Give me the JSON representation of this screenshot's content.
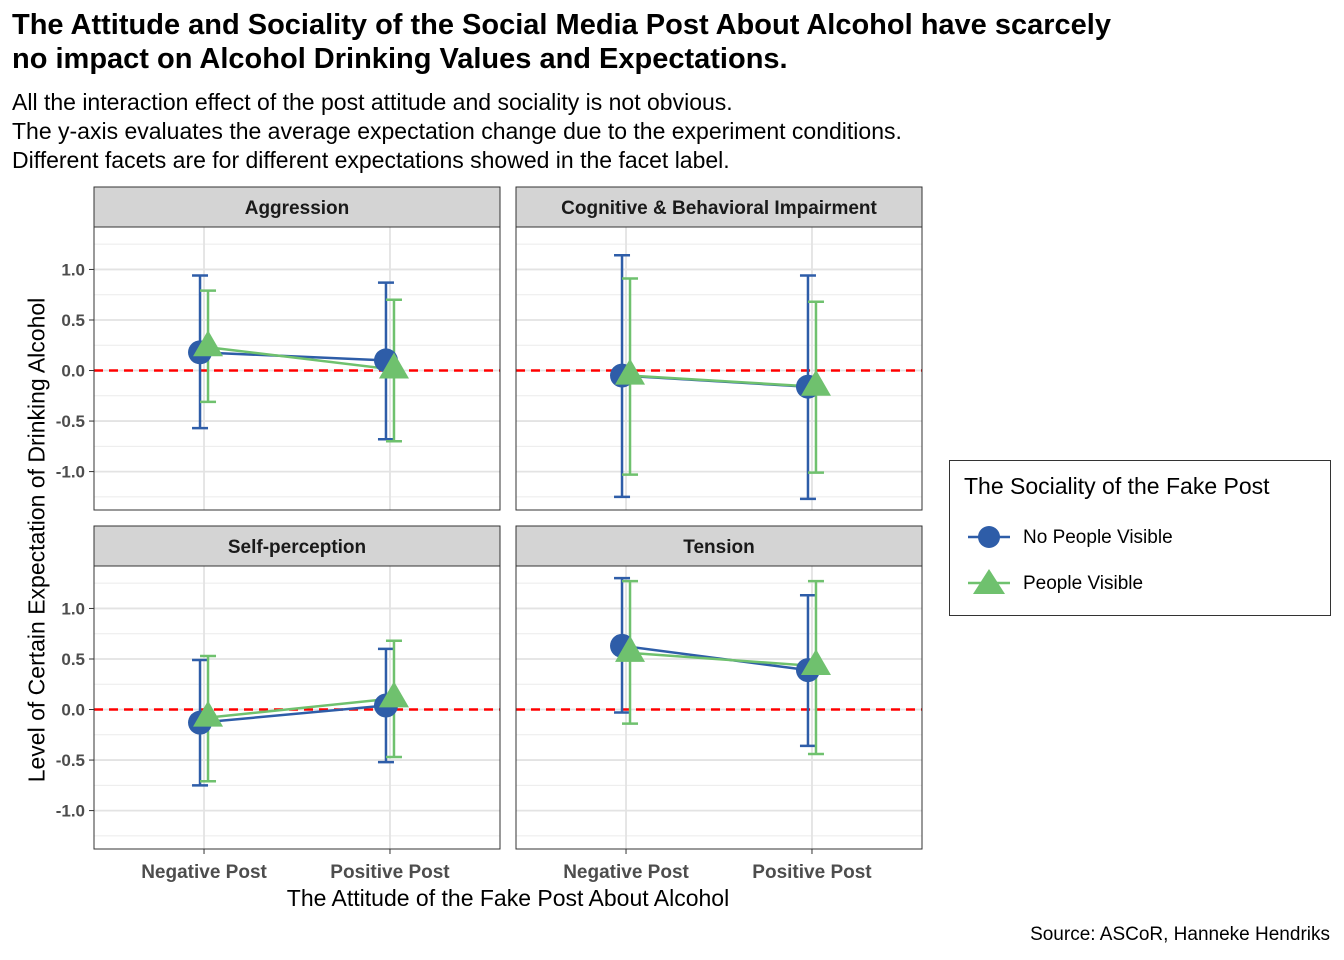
{
  "title_lines": [
    "The Attitude and Sociality of the Social Media Post About Alcohol have scarcely",
    "no impact on Alcohol Drinking Values and Expectations."
  ],
  "subtitle_lines": [
    "All the interaction effect of the post attitude and sociality is not obvious.",
    "The y-axis evaluates the average expectation change due to the experiment conditions.",
    "Different facets are for different expectations showed in the facet label."
  ],
  "caption": "Source: ASCoR, Hanneke Hendriks",
  "colors": {
    "no_people": "#2E5DA8",
    "people": "#6FC16E",
    "reference": "#FF0000",
    "strip": "#D4D4D4"
  },
  "chart_data": {
    "type": "scatter",
    "subtype": "point-range with connecting lines, faceted 2x2",
    "xlabel": "The Attitude of the Fake Post About Alcohol",
    "ylabel": "Level of Certain Expectation of Drinking Alcohol",
    "categories": [
      "Negative Post",
      "Positive Post"
    ],
    "y_ticks": [
      "1.0",
      "0.5",
      "0.0",
      "-0.5",
      "-1.0"
    ],
    "y_tick_values": [
      1.0,
      0.5,
      0.0,
      -0.5,
      -1.0
    ],
    "ylim": [
      -1.38,
      1.42
    ],
    "reference_line": {
      "y": 0,
      "style": "dashed",
      "color": "#FF0000"
    },
    "legend": {
      "title": "The Sociality of the Fake Post",
      "placement": "right",
      "entries": [
        {
          "label": "No People Visible",
          "marker": "circle",
          "color": "#2E5DA8"
        },
        {
          "label": "People Visible",
          "marker": "triangle",
          "color": "#6FC16E"
        }
      ]
    },
    "facets": [
      {
        "label": "Aggression",
        "series": [
          {
            "name": "No People Visible",
            "points": [
              {
                "x": "Negative Post",
                "y": 0.18,
                "low": -0.57,
                "high": 0.94
              },
              {
                "x": "Positive Post",
                "y": 0.1,
                "low": -0.68,
                "high": 0.87
              }
            ]
          },
          {
            "name": "People Visible",
            "points": [
              {
                "x": "Negative Post",
                "y": 0.23,
                "low": -0.31,
                "high": 0.79
              },
              {
                "x": "Positive Post",
                "y": 0.01,
                "low": -0.7,
                "high": 0.7
              }
            ]
          }
        ]
      },
      {
        "label": "Cognitive & Behavioral Impairment",
        "series": [
          {
            "name": "No People Visible",
            "points": [
              {
                "x": "Negative Post",
                "y": -0.05,
                "low": -1.25,
                "high": 1.14
              },
              {
                "x": "Positive Post",
                "y": -0.16,
                "low": -1.27,
                "high": 0.94
              }
            ]
          },
          {
            "name": "People Visible",
            "points": [
              {
                "x": "Negative Post",
                "y": -0.05,
                "low": -1.03,
                "high": 0.91
              },
              {
                "x": "Positive Post",
                "y": -0.16,
                "low": -1.01,
                "high": 0.68
              }
            ]
          }
        ]
      },
      {
        "label": "Self-perception",
        "series": [
          {
            "name": "No People Visible",
            "points": [
              {
                "x": "Negative Post",
                "y": -0.13,
                "low": -0.75,
                "high": 0.49
              },
              {
                "x": "Positive Post",
                "y": 0.04,
                "low": -0.52,
                "high": 0.6
              }
            ]
          },
          {
            "name": "People Visible",
            "points": [
              {
                "x": "Negative Post",
                "y": -0.08,
                "low": -0.71,
                "high": 0.53
              },
              {
                "x": "Positive Post",
                "y": 0.11,
                "low": -0.47,
                "high": 0.68
              }
            ]
          }
        ]
      },
      {
        "label": "Tension",
        "series": [
          {
            "name": "No People Visible",
            "points": [
              {
                "x": "Negative Post",
                "y": 0.63,
                "low": -0.03,
                "high": 1.3
              },
              {
                "x": "Positive Post",
                "y": 0.39,
                "low": -0.36,
                "high": 1.13
              }
            ]
          },
          {
            "name": "People Visible",
            "points": [
              {
                "x": "Negative Post",
                "y": 0.56,
                "low": -0.14,
                "high": 1.27
              },
              {
                "x": "Positive Post",
                "y": 0.43,
                "low": -0.44,
                "high": 1.27
              }
            ]
          }
        ]
      }
    ]
  }
}
